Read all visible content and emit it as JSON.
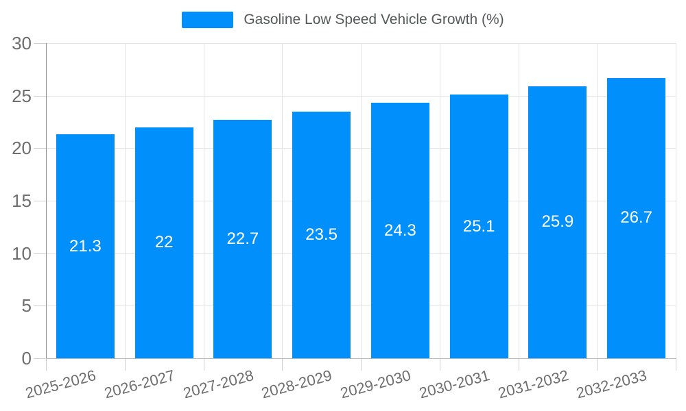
{
  "chart_data": {
    "type": "bar",
    "title": "",
    "legend": "Gasoline Low Speed Vehicle Growth (%)",
    "legend_position": "top",
    "categories": [
      "2025-2026",
      "2026-2027",
      "2027-2028",
      "2028-2029",
      "2029-2030",
      "2030-2031",
      "2031-2032",
      "2032-2033"
    ],
    "values": [
      21.3,
      22,
      22.7,
      23.5,
      24.3,
      25.1,
      25.9,
      26.7
    ],
    "xlabel": "",
    "ylabel": "",
    "ylim": [
      0,
      30
    ],
    "ytick_step": 5,
    "grid": true,
    "bar_color": "#008FFB",
    "value_label_color": "#ffffff",
    "axis_label_color": "#6e6e6e",
    "legend_text_color": "#545859",
    "gridline_color": "#e4e4e4"
  }
}
